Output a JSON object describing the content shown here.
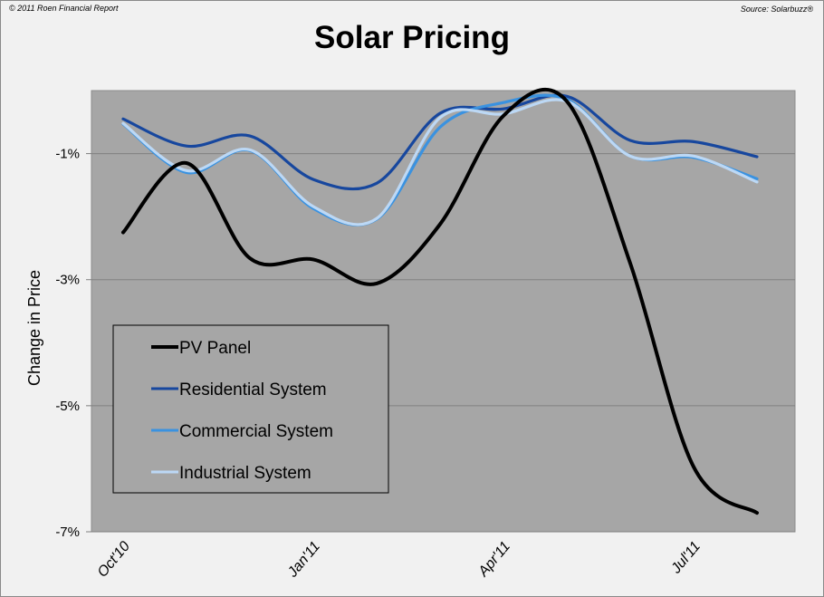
{
  "header": {
    "copyright": "© 2011 Roen Financial Report",
    "source": "Source: Solarbuzz®"
  },
  "chart_data": {
    "type": "line",
    "title": "Solar Pricing",
    "xlabel": "",
    "ylabel": "Change in Price",
    "ylim": [
      -7,
      0
    ],
    "y_ticks": [
      -1,
      -3,
      -5,
      -7
    ],
    "y_tick_labels": [
      "-1%",
      "-3%",
      "-5%",
      "-7%"
    ],
    "x": [
      "Oct'10",
      "Nov'10",
      "Dec'10",
      "Jan'11",
      "Feb'11",
      "Mar'11",
      "Apr'11",
      "May'11",
      "Jun'11",
      "Jul'11",
      "Aug'11"
    ],
    "x_tick_labels": [
      {
        "index": 0,
        "label": "Oct'10"
      },
      {
        "index": 3,
        "label": "Jan'11"
      },
      {
        "index": 6,
        "label": "Apr'11"
      },
      {
        "index": 9,
        "label": "Jul'11"
      }
    ],
    "grid": true,
    "smooth": true,
    "plot_background": "#a6a6a6",
    "legend_position": "lower-left",
    "series": [
      {
        "name": "PV Panel",
        "color": "#000000",
        "values": [
          -2.25,
          -1.15,
          -2.66,
          -2.68,
          -3.06,
          -2.12,
          -0.4,
          -0.17,
          -2.74,
          -5.97,
          -6.7
        ]
      },
      {
        "name": "Residential System",
        "color": "#17479e",
        "values": [
          -0.45,
          -0.88,
          -0.72,
          -1.41,
          -1.47,
          -0.36,
          -0.29,
          -0.09,
          -0.79,
          -0.81,
          -1.05
        ]
      },
      {
        "name": "Commercial System",
        "color": "#3a92e0",
        "values": [
          -0.53,
          -1.3,
          -0.95,
          -1.87,
          -2.04,
          -0.58,
          -0.19,
          -0.14,
          -1.04,
          -1.06,
          -1.4
        ]
      },
      {
        "name": "Industrial System",
        "color": "#bcd8f5",
        "values": [
          -0.52,
          -1.27,
          -0.94,
          -1.84,
          -2.03,
          -0.43,
          -0.37,
          -0.17,
          -1.04,
          -1.04,
          -1.45
        ]
      }
    ]
  }
}
